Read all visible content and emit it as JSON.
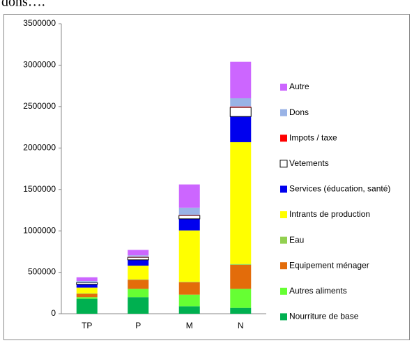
{
  "caption": "dons….",
  "chart_data": {
    "type": "stacked_bar",
    "categories": [
      "TP",
      "P",
      "M",
      "N"
    ],
    "series": [
      {
        "name": "Nourriture de base",
        "color": "#00b050",
        "values": [
          180000,
          200000,
          90000,
          70000
        ]
      },
      {
        "name": "Autres aliments",
        "color": "#66ff33",
        "values": [
          20000,
          100000,
          140000,
          230000
        ]
      },
      {
        "name": "Equipement ménager",
        "color": "#e36c0a",
        "values": [
          40000,
          110000,
          150000,
          290000
        ]
      },
      {
        "name": "Eau",
        "color": "#92d050",
        "values": [
          5000,
          5000,
          5000,
          10000
        ]
      },
      {
        "name": "Intrants de production",
        "color": "#ffff00",
        "values": [
          70000,
          165000,
          620000,
          1470000
        ]
      },
      {
        "name": "Services (éducation, santé)",
        "color": "#0000ee",
        "values": [
          40000,
          70000,
          140000,
          310000
        ]
      },
      {
        "name": "Vetements",
        "color": "#ffffff",
        "values": [
          20000,
          30000,
          40000,
          110000
        ]
      },
      {
        "name": "Impots / taxe",
        "color": "#ff0000",
        "values": [
          0,
          5000,
          5000,
          10000
        ]
      },
      {
        "name": "Dons",
        "color": "#99b3e6",
        "values": [
          20000,
          20000,
          90000,
          100000
        ]
      },
      {
        "name": "Autre",
        "color": "#cc66ff",
        "values": [
          45000,
          65000,
          280000,
          440000
        ]
      }
    ],
    "ylim": [
      0,
      3500000
    ],
    "yticks": [
      0,
      500000,
      1000000,
      1500000,
      2000000,
      2500000,
      3000000,
      3500000
    ],
    "legend": "right"
  }
}
